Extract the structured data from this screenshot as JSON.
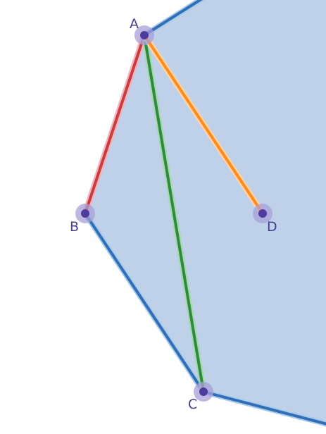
{
  "diagram": {
    "points": {
      "A": {
        "label": "A"
      },
      "B": {
        "label": "B"
      },
      "C": {
        "label": "C"
      },
      "D": {
        "label": "D"
      }
    },
    "colors": {
      "polygon_fill": "#bed1e8",
      "polygon_edge": "#2f6fb8",
      "edge_halo": "#a9cbe9",
      "segment_AB": "#cc3b3b",
      "segment_AC": "#2e8b3e",
      "segment_AD": "#ff8c1a",
      "point_fill": "#4f3b9c",
      "point_halo": "#a89fd8",
      "label": "#4a3d8f"
    }
  }
}
